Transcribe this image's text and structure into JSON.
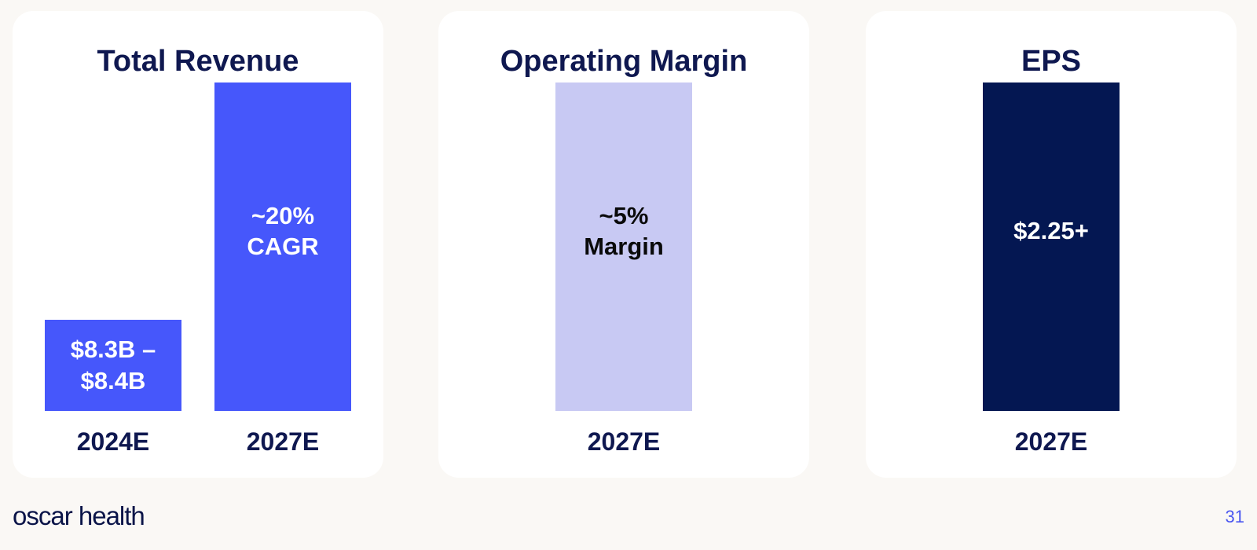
{
  "chart_data": [
    {
      "type": "bar",
      "title": "Total Revenue",
      "categories": [
        "2024E",
        "2027E"
      ],
      "values": [
        8.35,
        30
      ],
      "bar_labels": [
        "$8.3B –\n$8.4B",
        "~20%\nCAGR"
      ],
      "colors": [
        "#4657fb",
        "#4657fb"
      ],
      "label_colors": [
        "#ffffff",
        "#ffffff"
      ]
    },
    {
      "type": "bar",
      "title": "Operating Margin",
      "categories": [
        "2027E"
      ],
      "values": [
        5
      ],
      "bar_labels": [
        "~5%\nMargin"
      ],
      "colors": [
        "#c8c9f3"
      ],
      "label_colors": [
        "#0a0a0a"
      ]
    },
    {
      "type": "bar",
      "title": "EPS",
      "categories": [
        "2027E"
      ],
      "values": [
        2.25
      ],
      "bar_labels": [
        "$2.25+"
      ],
      "colors": [
        "#041752"
      ],
      "label_colors": [
        "#ffffff"
      ]
    }
  ],
  "footer": {
    "logo": "oscar health",
    "page_number": "31"
  }
}
